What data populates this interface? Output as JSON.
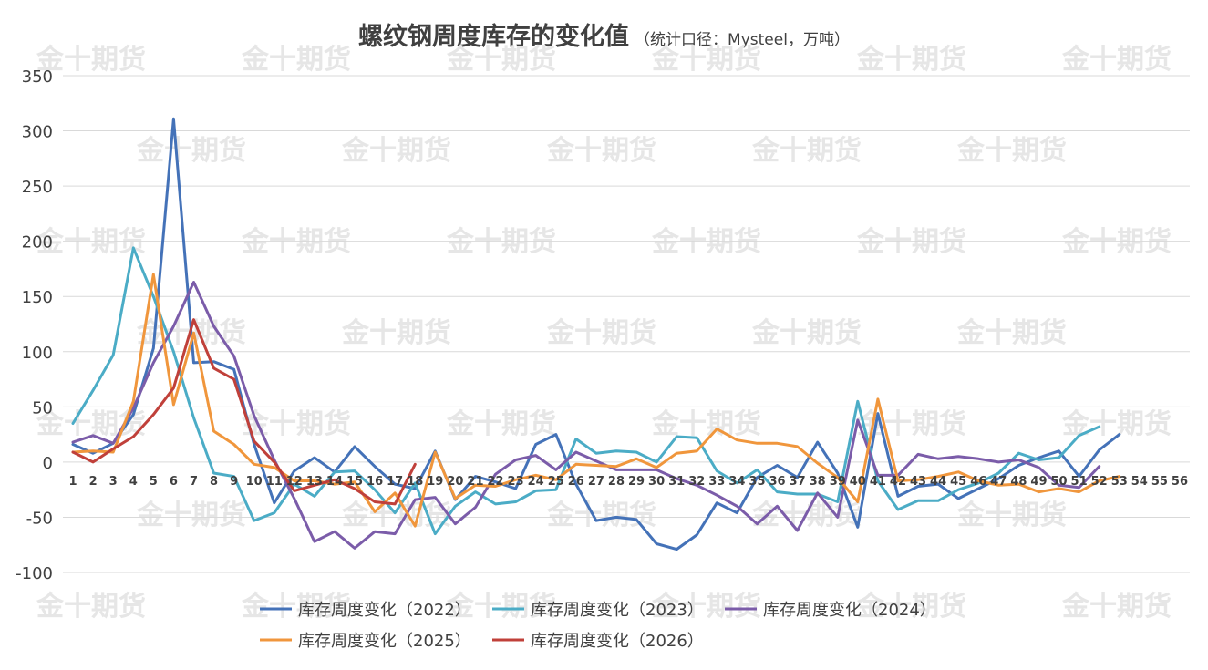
{
  "chart_data": {
    "type": "line",
    "title": "螺纹钢周度库存的变化值",
    "subtitle": "（统计口径：Mysteel，万吨）",
    "ylim": [
      -100,
      350
    ],
    "yticks": [
      350,
      300,
      250,
      200,
      150,
      100,
      50,
      0,
      -50,
      -100
    ],
    "grid": true,
    "legend_position": "bottom",
    "categories": [
      "1",
      "2",
      "3",
      "4",
      "5",
      "6",
      "7",
      "8",
      "9",
      "10",
      "11",
      "12",
      "13",
      "14",
      "15",
      "16",
      "17",
      "18",
      "19",
      "20",
      "21",
      "22",
      "23",
      "24",
      "25",
      "26",
      "27",
      "28",
      "29",
      "30",
      "31",
      "32",
      "33",
      "34",
      "35",
      "36",
      "37",
      "38",
      "39",
      "40",
      "41",
      "42",
      "43",
      "44",
      "45",
      "46",
      "47",
      "48",
      "49",
      "50",
      "51",
      "52",
      "53",
      "54",
      "55",
      "56"
    ],
    "series": [
      {
        "name": "库存周度变化（2022）",
        "color": "#4472b8",
        "values": [
          16,
          8,
          17,
          43,
          103,
          311,
          90,
          91,
          84,
          16,
          -37,
          -8,
          4,
          -9,
          14,
          -4,
          -20,
          -24,
          10,
          -34,
          -13,
          -18,
          -24,
          16,
          25,
          -20,
          -53,
          -50,
          -52,
          -74,
          -79,
          -66,
          -37,
          -46,
          -14,
          -3,
          -14,
          18,
          -10,
          -59,
          44,
          -31,
          -22,
          -20,
          -33,
          -24,
          -15,
          -3,
          4,
          10,
          -13,
          11,
          25,
          null,
          null,
          null
        ]
      },
      {
        "name": "库存周度变化（2023）",
        "color": "#4bacc6",
        "values": [
          35,
          65,
          97,
          194,
          150,
          100,
          40,
          -10,
          -13,
          -53,
          -46,
          -20,
          -31,
          -9,
          -8,
          -25,
          -46,
          -19,
          -65,
          -40,
          -27,
          -38,
          -36,
          -26,
          -25,
          21,
          8,
          10,
          9,
          0,
          23,
          22,
          -8,
          -19,
          -7,
          -27,
          -29,
          -29,
          -36,
          55,
          -17,
          -43,
          -35,
          -35,
          -25,
          -19,
          -10,
          8,
          2,
          4,
          24,
          32,
          null,
          null,
          null,
          null
        ]
      },
      {
        "name": "库存周度变化（2024）",
        "color": "#7b5ca9",
        "values": [
          18,
          24,
          17,
          49,
          90,
          123,
          163,
          123,
          96,
          42,
          2,
          -33,
          -72,
          -63,
          -78,
          -63,
          -65,
          -34,
          -32,
          -56,
          -41,
          -11,
          2,
          6,
          -7,
          9,
          1,
          -7,
          -7,
          -7,
          -15,
          -21,
          -30,
          -40,
          -56,
          -40,
          -62,
          -28,
          -50,
          38,
          -12,
          -12,
          7,
          3,
          5,
          3,
          0,
          2,
          -5,
          -21,
          -23,
          -4,
          null,
          null,
          null,
          null
        ]
      },
      {
        "name": "库存周度变化（2025）",
        "color": "#f0963c",
        "values": [
          9,
          10,
          9,
          55,
          170,
          52,
          117,
          28,
          16,
          -2,
          -5,
          -17,
          -17,
          -20,
          -18,
          -45,
          -28,
          -58,
          9,
          -33,
          -21,
          -22,
          -16,
          -12,
          -16,
          -2,
          -3,
          -4,
          3,
          -5,
          8,
          10,
          30,
          20,
          17,
          17,
          14,
          -1,
          -14,
          -36,
          57,
          -17,
          -16,
          -13,
          -9,
          -17,
          -21,
          -20,
          -27,
          -24,
          -27,
          -17,
          -13,
          null,
          null,
          null
        ]
      },
      {
        "name": "库存周度变化（2026）",
        "color": "#c0403a",
        "values": [
          9,
          0,
          12,
          23,
          43,
          67,
          129,
          85,
          75,
          19,
          0,
          -26,
          -21,
          -16,
          -24,
          -36,
          -38,
          -2,
          null,
          null,
          null,
          null,
          null,
          null,
          null,
          null,
          null,
          null,
          null,
          null,
          null,
          null,
          null,
          null,
          null,
          null,
          null,
          null,
          null,
          null,
          null,
          null,
          null,
          null,
          null,
          null,
          null,
          null,
          null,
          null,
          null,
          null,
          null,
          null,
          null,
          null
        ]
      }
    ]
  },
  "watermark": "金十期货"
}
